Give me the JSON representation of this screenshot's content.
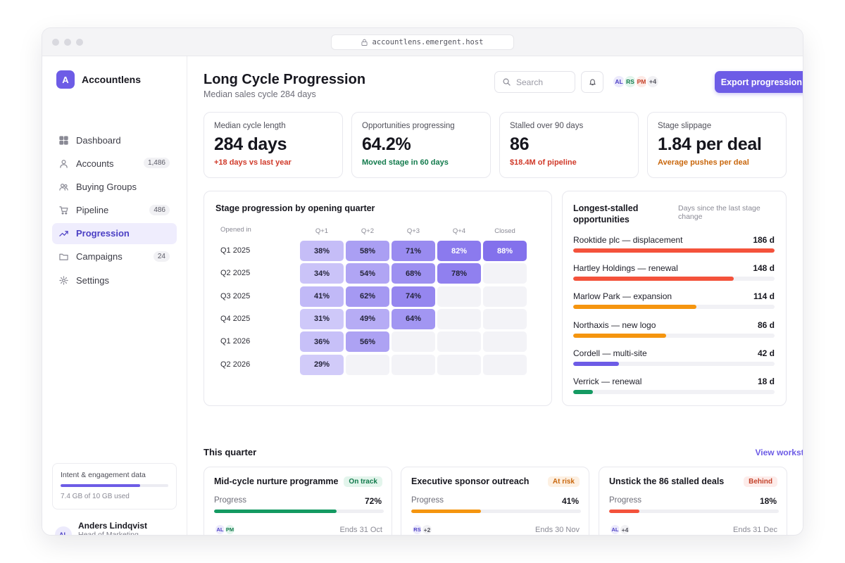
{
  "browser": {
    "url": "accountlens.emergent.host"
  },
  "app": {
    "logo_letter": "A",
    "name": "Accountlens"
  },
  "nav": [
    {
      "label": "Dashboard",
      "icon": "grid-icon",
      "badge": ""
    },
    {
      "label": "Accounts",
      "icon": "user-icon",
      "badge": "1,486"
    },
    {
      "label": "Buying Groups",
      "icon": "users-icon",
      "badge": ""
    },
    {
      "label": "Pipeline",
      "icon": "cart-icon",
      "badge": "486"
    },
    {
      "label": "Progression",
      "icon": "trend-icon",
      "badge": "",
      "active": true
    },
    {
      "label": "Campaigns",
      "icon": "folder-icon",
      "badge": "24"
    },
    {
      "label": "Settings",
      "icon": "gear-icon",
      "badge": ""
    }
  ],
  "storage": {
    "title": "Intent & engagement data",
    "used_text": "7.4 GB of 10 GB used",
    "used_fraction": 0.74
  },
  "user": {
    "initials": "AL",
    "name": "Anders Lindqvist",
    "role": "Head of Marketing Analytics"
  },
  "header": {
    "title": "Long Cycle Progression",
    "subtitle": "Median sales cycle 284 days",
    "search_placeholder": "Search",
    "team": [
      {
        "initials": "AL",
        "bg": "#eceafc",
        "fg": "#4b3fc4"
      },
      {
        "initials": "RS",
        "bg": "#e2f5ec",
        "fg": "#127a4c"
      },
      {
        "initials": "PM",
        "bg": "#fde9e5",
        "fg": "#c4422a"
      }
    ],
    "team_more": "+4",
    "export_label": "Export progression data"
  },
  "kpis": [
    {
      "label": "Median cycle length",
      "value": "284 days",
      "note": "+18 days vs last year",
      "note_color": "#d03a2a"
    },
    {
      "label": "Opportunities progressing",
      "value": "64.2%",
      "note": "Moved stage in 60 days",
      "note_color": "#127a4c"
    },
    {
      "label": "Stalled over 90 days",
      "value": "86",
      "note": "$18.4M of pipeline",
      "note_color": "#d03a2a"
    },
    {
      "label": "Stage slippage",
      "value": "1.84 per deal",
      "note": "Average pushes per deal",
      "note_color": "#c9670d"
    }
  ],
  "heatmap": {
    "title": "Stage progression by opening quarter",
    "row_header": "Opened in",
    "columns": [
      "Q+1",
      "Q+2",
      "Q+3",
      "Q+4",
      "Closed"
    ],
    "rows": [
      {
        "label": "Q1 2025",
        "cells": [
          "38%",
          "58%",
          "71%",
          "82%",
          "88%"
        ],
        "values": [
          38,
          58,
          71,
          82,
          88
        ]
      },
      {
        "label": "Q2 2025",
        "cells": [
          "34%",
          "54%",
          "68%",
          "78%",
          ""
        ],
        "values": [
          34,
          54,
          68,
          78,
          null
        ]
      },
      {
        "label": "Q3 2025",
        "cells": [
          "41%",
          "62%",
          "74%",
          "",
          ""
        ],
        "values": [
          41,
          62,
          74,
          null,
          null
        ]
      },
      {
        "label": "Q4 2025",
        "cells": [
          "31%",
          "49%",
          "64%",
          "",
          ""
        ],
        "values": [
          31,
          49,
          64,
          null,
          null
        ]
      },
      {
        "label": "Q1 2026",
        "cells": [
          "36%",
          "56%",
          "",
          "",
          ""
        ],
        "values": [
          36,
          56,
          null,
          null,
          null
        ]
      },
      {
        "label": "Q2 2026",
        "cells": [
          "29%",
          "",
          "",
          "",
          ""
        ],
        "values": [
          29,
          null,
          null,
          null,
          null
        ]
      }
    ]
  },
  "stalled": {
    "title": "Longest-stalled opportunities",
    "subtitle": "Days since the last stage change",
    "scale_max": 186,
    "items": [
      {
        "name": "Rooktide plc — displacement",
        "days_label": "186 d",
        "days": 186,
        "color": "#f4523b"
      },
      {
        "name": "Hartley Holdings — renewal",
        "days_label": "148 d",
        "days": 148,
        "color": "#f4523b"
      },
      {
        "name": "Marlow Park — expansion",
        "days_label": "114 d",
        "days": 114,
        "color": "#f5950f"
      },
      {
        "name": "Northaxis — new logo",
        "days_label": "86 d",
        "days": 86,
        "color": "#f5950f"
      },
      {
        "name": "Cordell — multi-site",
        "days_label": "42 d",
        "days": 42,
        "color": "#6d5ce6"
      },
      {
        "name": "Verrick — renewal",
        "days_label": "18 d",
        "days": 18,
        "color": "#149a62"
      }
    ]
  },
  "quarter": {
    "title": "This quarter",
    "link": "View workstreams",
    "progress_label": "Progress",
    "workstreams": [
      {
        "title": "Mid-cycle nurture programme",
        "status": "On track",
        "status_bg": "#e3f5ec",
        "status_fg": "#127a4c",
        "progress_text": "72%",
        "progress": 0.72,
        "bar_color": "#149a62",
        "avatars": [
          {
            "initials": "AL",
            "bg": "#eceafc",
            "fg": "#4b3fc4"
          },
          {
            "initials": "PM",
            "bg": "#e2f5ec",
            "fg": "#127a4c"
          }
        ],
        "more": "",
        "ends": "Ends 31 Oct"
      },
      {
        "title": "Executive sponsor outreach",
        "status": "At risk",
        "status_bg": "#fdf0e2",
        "status_fg": "#c9670d",
        "progress_text": "41%",
        "progress": 0.41,
        "bar_color": "#f5950f",
        "avatars": [
          {
            "initials": "RS",
            "bg": "#eceafc",
            "fg": "#4b3fc4"
          }
        ],
        "more": "+2",
        "ends": "Ends 30 Nov"
      },
      {
        "title": "Unstick the 86 stalled deals",
        "status": "Behind",
        "status_bg": "#fdecea",
        "status_fg": "#c4422a",
        "progress_text": "18%",
        "progress": 0.18,
        "bar_color": "#f4523b",
        "avatars": [
          {
            "initials": "AL",
            "bg": "#eceafc",
            "fg": "#4b3fc4"
          }
        ],
        "more": "+4",
        "ends": "Ends 31 Dec"
      }
    ]
  }
}
